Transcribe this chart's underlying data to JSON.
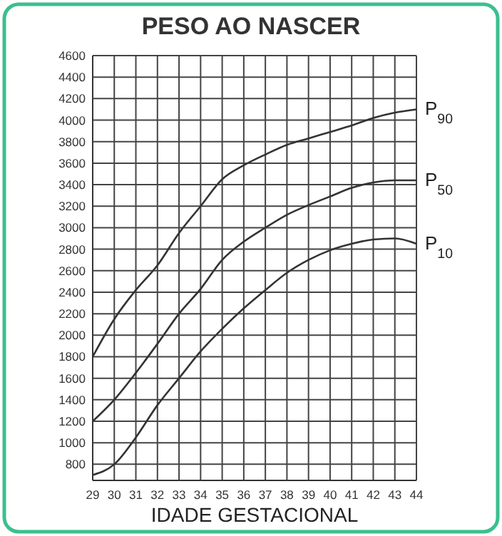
{
  "chart_data": {
    "type": "line",
    "title": "PESO AO NASCER",
    "xlabel": "IDADE GESTACIONAL",
    "x": [
      29,
      30,
      31,
      32,
      33,
      34,
      35,
      36,
      37,
      38,
      39,
      40,
      41,
      42,
      43,
      44
    ],
    "series": [
      {
        "name": "P$_{90}$",
        "color": "#333333",
        "values": [
          1800,
          2150,
          2420,
          2650,
          2950,
          3200,
          3450,
          3580,
          3680,
          3770,
          3830,
          3890,
          3950,
          4020,
          4070,
          4100
        ]
      },
      {
        "name": "P$_{50}$",
        "color": "#333333",
        "values": [
          1200,
          1400,
          1650,
          1920,
          2200,
          2430,
          2700,
          2870,
          3000,
          3120,
          3210,
          3290,
          3370,
          3420,
          3440,
          3440
        ]
      },
      {
        "name": "P$_{10}$",
        "color": "#333333",
        "values": [
          700,
          800,
          1050,
          1350,
          1600,
          1850,
          2060,
          2250,
          2420,
          2580,
          2700,
          2790,
          2850,
          2890,
          2900,
          2850
        ]
      }
    ],
    "xlim": [
      29,
      44
    ],
    "xticks": [
      29,
      30,
      31,
      32,
      33,
      34,
      35,
      36,
      37,
      38,
      39,
      40,
      41,
      42,
      43,
      44
    ],
    "ylim": [
      650,
      4600
    ],
    "yticks": [
      800,
      1000,
      1200,
      1400,
      1600,
      1800,
      2000,
      2200,
      2400,
      2600,
      2800,
      3000,
      3200,
      3400,
      3600,
      3800,
      4000,
      4200,
      4400,
      4600
    ],
    "grid": true,
    "marker": "none",
    "line_style": "solid"
  }
}
